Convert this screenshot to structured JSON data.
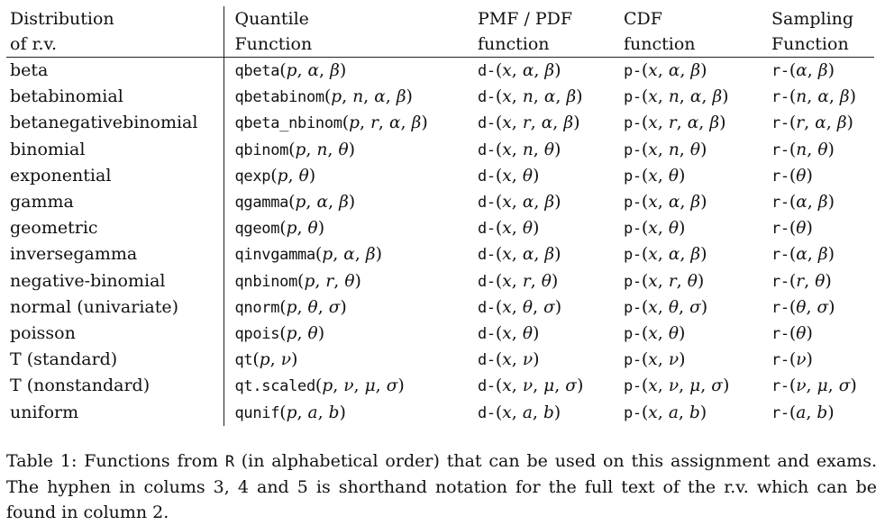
{
  "table": {
    "headers": [
      [
        "Distribution",
        "of r.v."
      ],
      [
        "Quantile",
        "Function"
      ],
      [
        "PMF / PDF",
        "function"
      ],
      [
        "CDF",
        "function"
      ],
      [
        "Sampling",
        "Function"
      ]
    ],
    "rows": [
      {
        "name": "beta",
        "q": "qbeta",
        "args": [
          "α",
          "β"
        ]
      },
      {
        "name": "betabinomial",
        "q": "qbetabinom",
        "args": [
          "n",
          "α",
          "β"
        ]
      },
      {
        "name": "betanegativebinomial",
        "q": "qbeta_nbinom",
        "args": [
          "r",
          "α",
          "β"
        ]
      },
      {
        "name": "binomial",
        "q": "qbinom",
        "args": [
          "n",
          "θ"
        ]
      },
      {
        "name": "exponential",
        "q": "qexp",
        "args": [
          "θ"
        ]
      },
      {
        "name": "gamma",
        "q": "qgamma",
        "args": [
          "α",
          "β"
        ]
      },
      {
        "name": "geometric",
        "q": "qgeom",
        "args": [
          "θ"
        ]
      },
      {
        "name": "inversegamma",
        "q": "qinvgamma",
        "args": [
          "α",
          "β"
        ]
      },
      {
        "name": "negative-binomial",
        "q": "qnbinom",
        "args": [
          "r",
          "θ"
        ]
      },
      {
        "name": "normal (univariate)",
        "q": "qnorm",
        "args": [
          "θ",
          "σ"
        ]
      },
      {
        "name": "poisson",
        "q": "qpois",
        "args": [
          "θ"
        ]
      },
      {
        "name": "T (standard)",
        "q": "qt",
        "args": [
          "ν"
        ]
      },
      {
        "name": "T (nonstandard)",
        "q": "qt.scaled",
        "args": [
          "ν",
          "μ",
          "σ"
        ]
      },
      {
        "name": "uniform",
        "q": "qunif",
        "args": [
          "a",
          "b"
        ]
      }
    ],
    "q_first_arg": "p",
    "density_first_arg": "x",
    "d_prefix": "d-",
    "p_prefix": "p-",
    "r_prefix": "r-"
  },
  "caption": {
    "before": "Table 1: Functions from ",
    "code": "R",
    "after": " (in alphabetical order) that can be used on this assignment and exams. The hyphen in colums 3, 4 and 5 is shorthand notation for the full text of the r.v. which can be found in column 2."
  }
}
